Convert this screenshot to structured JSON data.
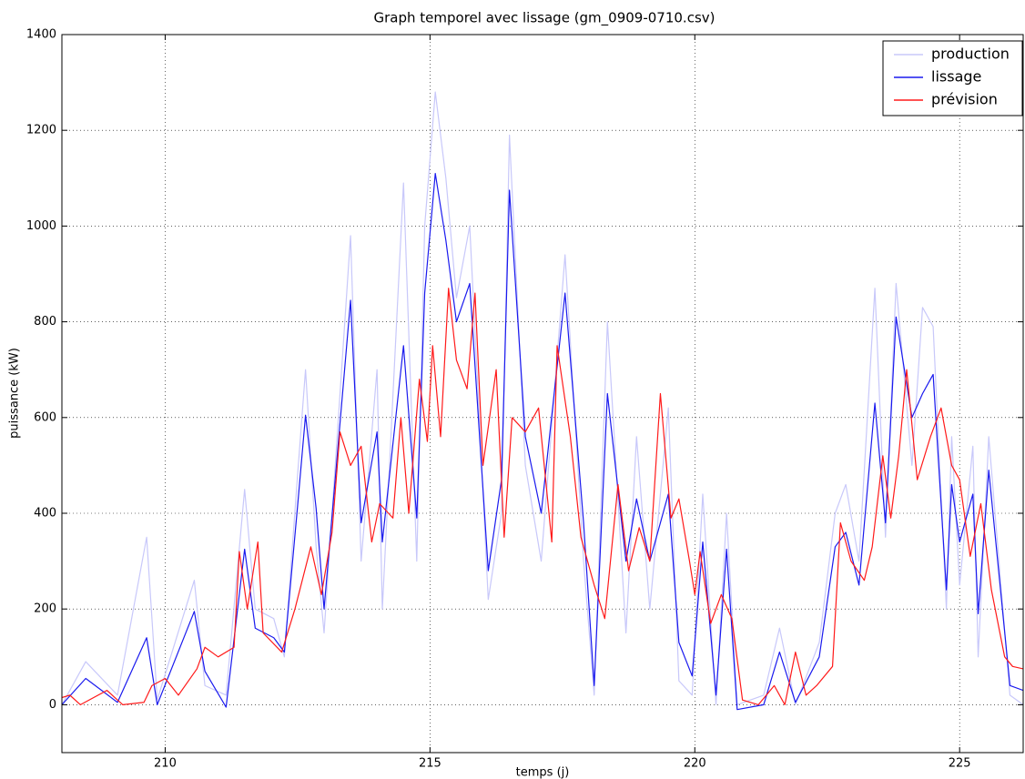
{
  "chart_data": {
    "type": "line",
    "title": "Graph temporel avec lissage (gm_0909-0710.csv)",
    "xlabel": "temps (j)",
    "ylabel": "puissance (kW)",
    "xlim": [
      208.05,
      226.2
    ],
    "ylim": [
      -100,
      1400
    ],
    "xticks": [
      210,
      215,
      220,
      225
    ],
    "yticks": [
      0,
      200,
      400,
      600,
      800,
      1000,
      1200,
      1400
    ],
    "grid": true,
    "legend": "upper right",
    "series": [
      {
        "name": "production",
        "color": "#c8c8fa",
        "x": [
          208.05,
          208.5,
          209.1,
          209.65,
          209.85,
          210.55,
          210.75,
          211.15,
          211.5,
          211.7,
          212.05,
          212.25,
          212.5,
          212.65,
          212.85,
          213.0,
          213.5,
          213.7,
          214.0,
          214.1,
          214.5,
          214.75,
          214.9,
          215.1,
          215.3,
          215.5,
          215.75,
          216.1,
          216.35,
          216.5,
          216.8,
          217.1,
          217.55,
          217.9,
          218.1,
          218.35,
          218.7,
          218.9,
          219.15,
          219.5,
          219.7,
          219.95,
          220.15,
          220.4,
          220.6,
          220.8,
          221.3,
          221.6,
          221.9,
          222.35,
          222.65,
          222.85,
          223.1,
          223.4,
          223.6,
          223.8,
          224.1,
          224.3,
          224.5,
          224.75,
          224.85,
          225.0,
          225.25,
          225.35,
          225.55,
          225.95,
          226.2
        ],
        "values": [
          0,
          90,
          20,
          350,
          10,
          260,
          40,
          20,
          450,
          200,
          180,
          100,
          480,
          700,
          330,
          150,
          980,
          300,
          700,
          200,
          1090,
          300,
          1000,
          1280,
          1100,
          850,
          1000,
          220,
          400,
          1190,
          500,
          300,
          940,
          300,
          20,
          800,
          150,
          560,
          200,
          620,
          50,
          20,
          440,
          0,
          400,
          0,
          20,
          160,
          0,
          130,
          400,
          460,
          300,
          870,
          350,
          880,
          500,
          830,
          790,
          200,
          560,
          250,
          540,
          100,
          560,
          20,
          0
        ]
      },
      {
        "name": "lissage",
        "color": "#1a1aee",
        "x": [
          208.05,
          208.5,
          209.1,
          209.65,
          209.85,
          210.55,
          210.75,
          211.15,
          211.5,
          211.7,
          212.05,
          212.25,
          212.5,
          212.65,
          212.85,
          213.0,
          213.5,
          213.7,
          214.0,
          214.1,
          214.5,
          214.75,
          214.9,
          215.1,
          215.3,
          215.5,
          215.75,
          216.1,
          216.35,
          216.5,
          216.8,
          217.1,
          217.55,
          217.9,
          218.1,
          218.35,
          218.7,
          218.9,
          219.15,
          219.5,
          219.7,
          219.95,
          220.15,
          220.4,
          220.6,
          220.8,
          221.3,
          221.6,
          221.9,
          222.35,
          222.65,
          222.85,
          223.1,
          223.4,
          223.6,
          223.8,
          224.1,
          224.3,
          224.5,
          224.75,
          224.85,
          225.0,
          225.25,
          225.35,
          225.55,
          225.95,
          226.2
        ],
        "values": [
          0,
          55,
          5,
          140,
          0,
          195,
          70,
          -5,
          325,
          160,
          140,
          110,
          415,
          605,
          410,
          200,
          845,
          380,
          570,
          340,
          750,
          390,
          860,
          1110,
          970,
          800,
          880,
          280,
          470,
          1075,
          560,
          400,
          860,
          380,
          40,
          650,
          300,
          430,
          300,
          440,
          130,
          60,
          340,
          20,
          325,
          -10,
          0,
          110,
          5,
          100,
          330,
          360,
          250,
          630,
          380,
          810,
          600,
          650,
          690,
          240,
          460,
          340,
          440,
          190,
          490,
          40,
          30
        ]
      },
      {
        "name": "prévision",
        "color": "#ff1a1a",
        "x": [
          208.05,
          208.2,
          208.4,
          208.9,
          209.2,
          209.6,
          209.75,
          210.0,
          210.25,
          210.6,
          210.75,
          211.0,
          211.3,
          211.4,
          211.55,
          211.75,
          211.85,
          212.2,
          212.45,
          212.75,
          212.95,
          213.15,
          213.3,
          213.5,
          213.7,
          213.9,
          214.05,
          214.3,
          214.45,
          214.6,
          214.8,
          214.95,
          215.05,
          215.2,
          215.35,
          215.5,
          215.7,
          215.85,
          216.0,
          216.25,
          216.4,
          216.55,
          216.8,
          217.05,
          217.3,
          217.4,
          217.65,
          217.85,
          218.1,
          218.3,
          218.55,
          218.75,
          218.95,
          219.15,
          219.35,
          219.55,
          219.7,
          219.9,
          220.0,
          220.1,
          220.3,
          220.5,
          220.7,
          220.9,
          221.2,
          221.5,
          221.7,
          221.9,
          222.1,
          222.3,
          222.6,
          222.75,
          222.95,
          223.2,
          223.35,
          223.55,
          223.7,
          223.85,
          224.0,
          224.2,
          224.45,
          224.65,
          224.85,
          225.0,
          225.2,
          225.4,
          225.6,
          225.85,
          226.0,
          226.2
        ],
        "values": [
          15,
          20,
          0,
          30,
          0,
          5,
          40,
          55,
          20,
          75,
          120,
          100,
          120,
          320,
          200,
          340,
          150,
          110,
          200,
          330,
          230,
          360,
          570,
          500,
          540,
          340,
          420,
          390,
          600,
          400,
          680,
          550,
          750,
          560,
          870,
          720,
          660,
          860,
          500,
          700,
          350,
          600,
          570,
          620,
          340,
          750,
          560,
          350,
          250,
          180,
          460,
          280,
          370,
          300,
          650,
          390,
          430,
          300,
          230,
          320,
          170,
          230,
          180,
          10,
          0,
          40,
          0,
          110,
          20,
          40,
          80,
          380,
          300,
          260,
          330,
          520,
          390,
          520,
          700,
          470,
          560,
          620,
          500,
          470,
          310,
          420,
          240,
          100,
          80,
          75
        ]
      }
    ]
  }
}
